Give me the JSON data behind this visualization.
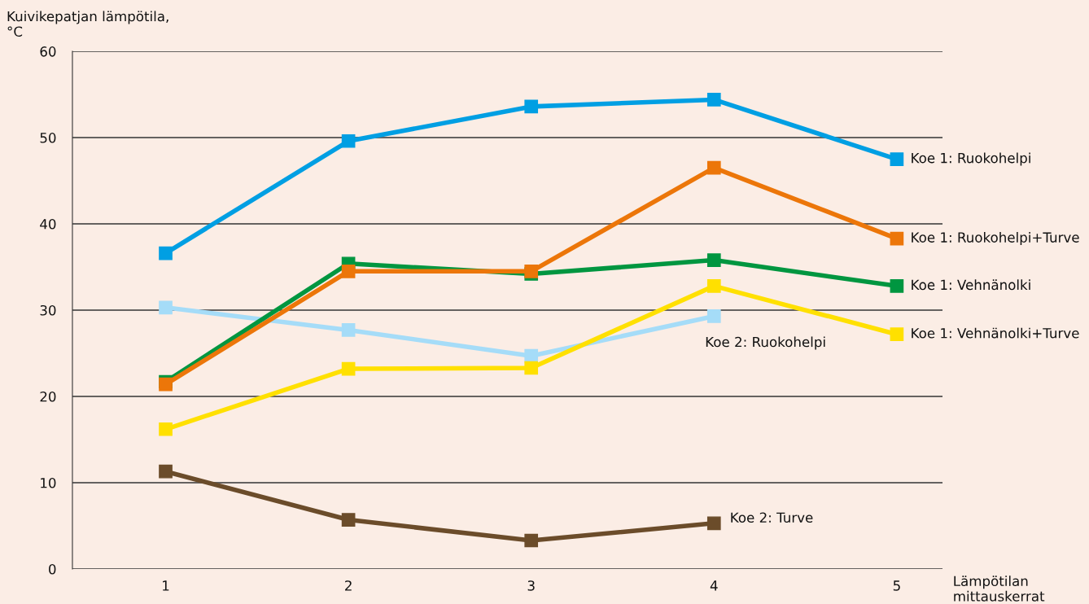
{
  "chart_data": {
    "type": "line",
    "ylabel": "Kuivikepatjan lämpötila,\n°C",
    "xlabel": "Lämpötilan\nmittauskerrat",
    "x": [
      1,
      2,
      3,
      4,
      5
    ],
    "xlim": [
      0.49,
      5.25
    ],
    "xticks": [
      1,
      2,
      3,
      4,
      5
    ],
    "ylim": [
      0,
      60
    ],
    "yticks": [
      0,
      10,
      20,
      30,
      40,
      50,
      60
    ],
    "grid": "y",
    "legend": false,
    "marker": "square",
    "line_style": "solid",
    "series": [
      {
        "name": "Koe 1: Ruokohelpi",
        "color": "#009fe3",
        "values": [
          36.6,
          49.6,
          53.6,
          54.4,
          47.5
        ]
      },
      {
        "name": "Koe 1: Ruokohelpi+Turve",
        "color": "#ec7609",
        "values": [
          21.4,
          34.5,
          34.5,
          46.5,
          38.3
        ]
      },
      {
        "name": "Koe 1: Vehnänolki",
        "color": "#009640",
        "values": [
          21.7,
          35.4,
          34.2,
          35.8,
          32.8
        ]
      },
      {
        "name": "Koe 1: Vehnänolki+Turve",
        "color": "#ffe000",
        "values": [
          16.2,
          23.2,
          23.3,
          32.8,
          27.2
        ]
      },
      {
        "name": "Koe 2: Ruokohelpi",
        "color": "#a5dcf8",
        "values": [
          30.3,
          27.7,
          24.7,
          29.3,
          null
        ]
      },
      {
        "name": "Koe 2: Turve",
        "color": "#6b4c2a",
        "values": [
          11.3,
          5.7,
          3.3,
          5.3,
          null
        ]
      }
    ]
  }
}
